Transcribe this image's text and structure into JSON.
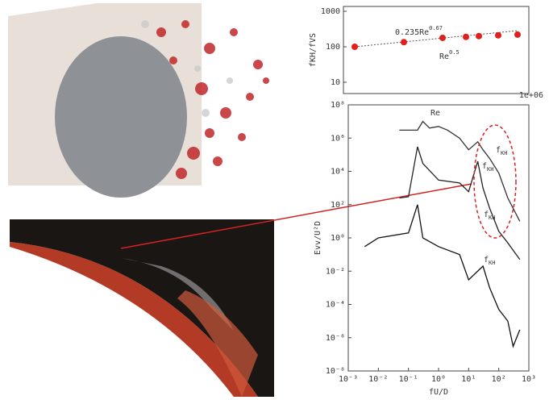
{
  "chart_data": [
    {
      "type": "scatter",
      "ylabel": "fKH/fVS",
      "x_offset_label": "1e+06",
      "xlim": [
        0,
        2.3
      ],
      "ylim": [
        4.8,
        1370
      ],
      "ylog": true,
      "yticks": [
        10,
        100,
        1000
      ],
      "annotations": [
        {
          "text": "0.235Re",
          "sup": "0.67"
        },
        {
          "text": "Re",
          "sup": "0.5"
        }
      ],
      "series": [
        {
          "color": "#e0201b",
          "x": [
            0.14,
            0.75,
            1.23,
            1.52,
            1.68,
            1.92,
            2.16
          ],
          "values": [
            100,
            135,
            178,
            190,
            200,
            210,
            220
          ]
        }
      ]
    },
    {
      "type": "line",
      "xlabel": "fU/D",
      "ylabel": "Evv/U²D",
      "xlim": [
        0.001,
        1000
      ],
      "xlog": true,
      "ylim": [
        1e-08,
        100000000.0
      ],
      "ylog": true,
      "xticks": [
        {
          "value": 0.001,
          "label": "10⁻³"
        },
        {
          "value": 0.01,
          "label": "10⁻²"
        },
        {
          "value": 0.1,
          "label": "10⁻¹"
        },
        {
          "value": 1,
          "label": "10⁰"
        },
        {
          "value": 10,
          "label": "10¹"
        },
        {
          "value": 100,
          "label": "10²"
        },
        {
          "value": 1000,
          "label": "10³"
        }
      ],
      "yticks": [
        {
          "value": 1e-08,
          "label": "10⁻⁸"
        },
        {
          "value": 1e-06,
          "label": "10⁻⁶"
        },
        {
          "value": 0.0001,
          "label": "10⁻⁴"
        },
        {
          "value": 0.01,
          "label": "10⁻²"
        },
        {
          "value": 1,
          "label": "10⁰"
        },
        {
          "value": 100,
          "label": "10²"
        },
        {
          "value": 10000,
          "label": "10⁴"
        },
        {
          "value": 1000000,
          "label": "10⁶"
        },
        {
          "value": 100000000,
          "label": "10⁸"
        }
      ],
      "annotations": [
        {
          "text": "Re"
        },
        {
          "text": "f",
          "sub": "KH"
        },
        {
          "text": "f",
          "sub": "KH"
        },
        {
          "text": "f",
          "sub": "KH"
        },
        {
          "text": "f",
          "sub": "KH"
        }
      ],
      "series": [
        {
          "color": "#333333",
          "x": [
            0.05,
            0.1,
            0.2,
            0.3,
            0.5,
            1,
            2,
            5,
            10,
            20,
            30,
            50,
            100,
            200,
            500
          ],
          "values": [
            3000000.0,
            3000000.0,
            3000000.0,
            10000000.0,
            4000000.0,
            5000000.0,
            3000000.0,
            1000000.0,
            200000.0,
            600000.0,
            200000.0,
            60000.0,
            8000.0,
            250,
            10
          ]
        },
        {
          "color": "#222222",
          "x": [
            0.05,
            0.1,
            0.2,
            0.3,
            1,
            5,
            10,
            20,
            30,
            50,
            100,
            200,
            500
          ],
          "values": [
            250,
            300,
            300000.0,
            30000.0,
            3000,
            2000,
            600,
            40000.0,
            1000,
            60,
            2.5,
            0.5,
            0.05
          ]
        },
        {
          "color": "#111111",
          "x": [
            0.0035,
            0.01,
            0.1,
            0.2,
            0.3,
            1,
            5,
            10,
            30,
            50,
            100,
            200,
            300,
            500
          ],
          "values": [
            0.3,
            1,
            2,
            100,
            1,
            0.3,
            0.1,
            0.003,
            0.02,
            0.001,
            5e-05,
            1e-05,
            3e-07,
            3e-06
          ]
        }
      ]
    }
  ]
}
